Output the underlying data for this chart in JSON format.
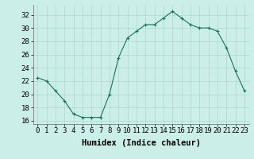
{
  "x": [
    0,
    1,
    2,
    3,
    4,
    5,
    6,
    7,
    8,
    9,
    10,
    11,
    12,
    13,
    14,
    15,
    16,
    17,
    18,
    19,
    20,
    21,
    22,
    23
  ],
  "y": [
    22.5,
    22.0,
    20.5,
    19.0,
    17.0,
    16.5,
    16.5,
    16.5,
    20.0,
    25.5,
    28.5,
    29.5,
    30.5,
    30.5,
    31.5,
    32.5,
    31.5,
    30.5,
    30.0,
    30.0,
    29.5,
    27.0,
    23.5,
    20.5
  ],
  "line_color": "#1a7060",
  "marker": "+",
  "marker_color": "#1a7060",
  "bg_color": "#cceee8",
  "grid_color": "#add8d2",
  "xlabel": "Humidex (Indice chaleur)",
  "ylim": [
    15.5,
    33.5
  ],
  "xlim": [
    -0.5,
    23.5
  ],
  "yticks": [
    16,
    18,
    20,
    22,
    24,
    26,
    28,
    30,
    32
  ],
  "xticks": [
    0,
    1,
    2,
    3,
    4,
    5,
    6,
    7,
    8,
    9,
    10,
    11,
    12,
    13,
    14,
    15,
    16,
    17,
    18,
    19,
    20,
    21,
    22,
    23
  ],
  "tick_fontsize": 6.5,
  "label_fontsize": 7.5
}
